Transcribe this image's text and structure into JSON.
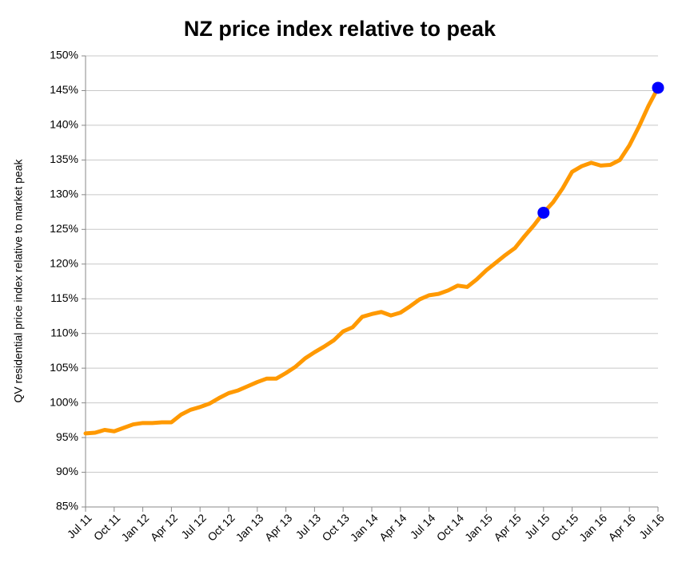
{
  "chart_data": {
    "type": "line",
    "title": "NZ price index relative to peak",
    "y_label": "QV residential price index relative to market peak",
    "categories": [
      "Jul 11",
      null,
      null,
      "Oct 11",
      null,
      null,
      "Jan 12",
      null,
      null,
      "Apr 12",
      null,
      null,
      "Jul 12",
      null,
      null,
      "Oct 12",
      null,
      null,
      "Jan 13",
      null,
      null,
      "Apr 13",
      null,
      null,
      "Jul 13",
      null,
      null,
      "Oct 13",
      null,
      null,
      "Jan 14",
      null,
      null,
      "Apr 14",
      null,
      null,
      "Jul 14",
      null,
      null,
      "Oct 14",
      null,
      null,
      "Jan 15",
      null,
      null,
      "Apr 15",
      null,
      null,
      "Jul 15",
      null,
      null,
      "Oct 15",
      null,
      null,
      "Jan 16",
      null,
      null,
      "Apr 16",
      null,
      null,
      "Jul 16"
    ],
    "series": [
      {
        "color": "#ff9900",
        "line": true,
        "marker": false,
        "values": [
          95.6,
          95.7,
          96.1,
          95.9,
          96.4,
          96.9,
          97.1,
          97.1,
          97.2,
          97.2,
          98.3,
          99.0,
          99.4,
          99.9,
          100.7,
          101.4,
          101.8,
          102.4,
          103.0,
          103.5,
          103.5,
          104.3,
          105.2,
          106.4,
          107.3,
          108.1,
          109.0,
          110.3,
          110.9,
          112.4,
          112.8,
          113.1,
          112.6,
          113.0,
          113.9,
          114.9,
          115.5,
          115.7,
          116.2,
          116.9,
          116.7,
          117.8,
          119.1,
          120.2,
          121.3,
          122.3,
          124.0,
          125.6,
          127.4,
          128.9,
          130.9,
          133.3,
          134.1,
          134.6,
          134.2,
          134.3,
          135.0,
          137.1,
          139.8,
          142.8,
          145.4
        ]
      },
      {
        "color": "#0000ff",
        "line": false,
        "marker": true,
        "values": [
          null,
          null,
          null,
          null,
          null,
          null,
          null,
          null,
          null,
          null,
          null,
          null,
          null,
          null,
          null,
          null,
          null,
          null,
          null,
          null,
          null,
          null,
          null,
          null,
          null,
          null,
          null,
          null,
          null,
          null,
          null,
          null,
          null,
          null,
          null,
          null,
          null,
          null,
          null,
          null,
          null,
          null,
          null,
          null,
          null,
          null,
          null,
          null,
          127.4,
          null,
          null,
          null,
          null,
          null,
          null,
          null,
          null,
          null,
          null,
          null,
          145.4
        ]
      }
    ],
    "ylim": [
      85,
      150
    ],
    "yticks": [
      {
        "value": 85,
        "label": "85%"
      },
      {
        "value": 90,
        "label": "90%"
      },
      {
        "value": 95,
        "label": "95%"
      },
      {
        "value": 100,
        "label": "100%"
      },
      {
        "value": 105,
        "label": "105%"
      },
      {
        "value": 110,
        "label": "110%"
      },
      {
        "value": 115,
        "label": "115%"
      },
      {
        "value": 120,
        "label": "120%"
      },
      {
        "value": 125,
        "label": "125%"
      },
      {
        "value": 130,
        "label": "130%"
      },
      {
        "value": 135,
        "label": "135%"
      },
      {
        "value": 140,
        "label": "140%"
      },
      {
        "value": 145,
        "label": "145%"
      },
      {
        "value": 150,
        "label": "150%"
      }
    ],
    "grid": true
  }
}
